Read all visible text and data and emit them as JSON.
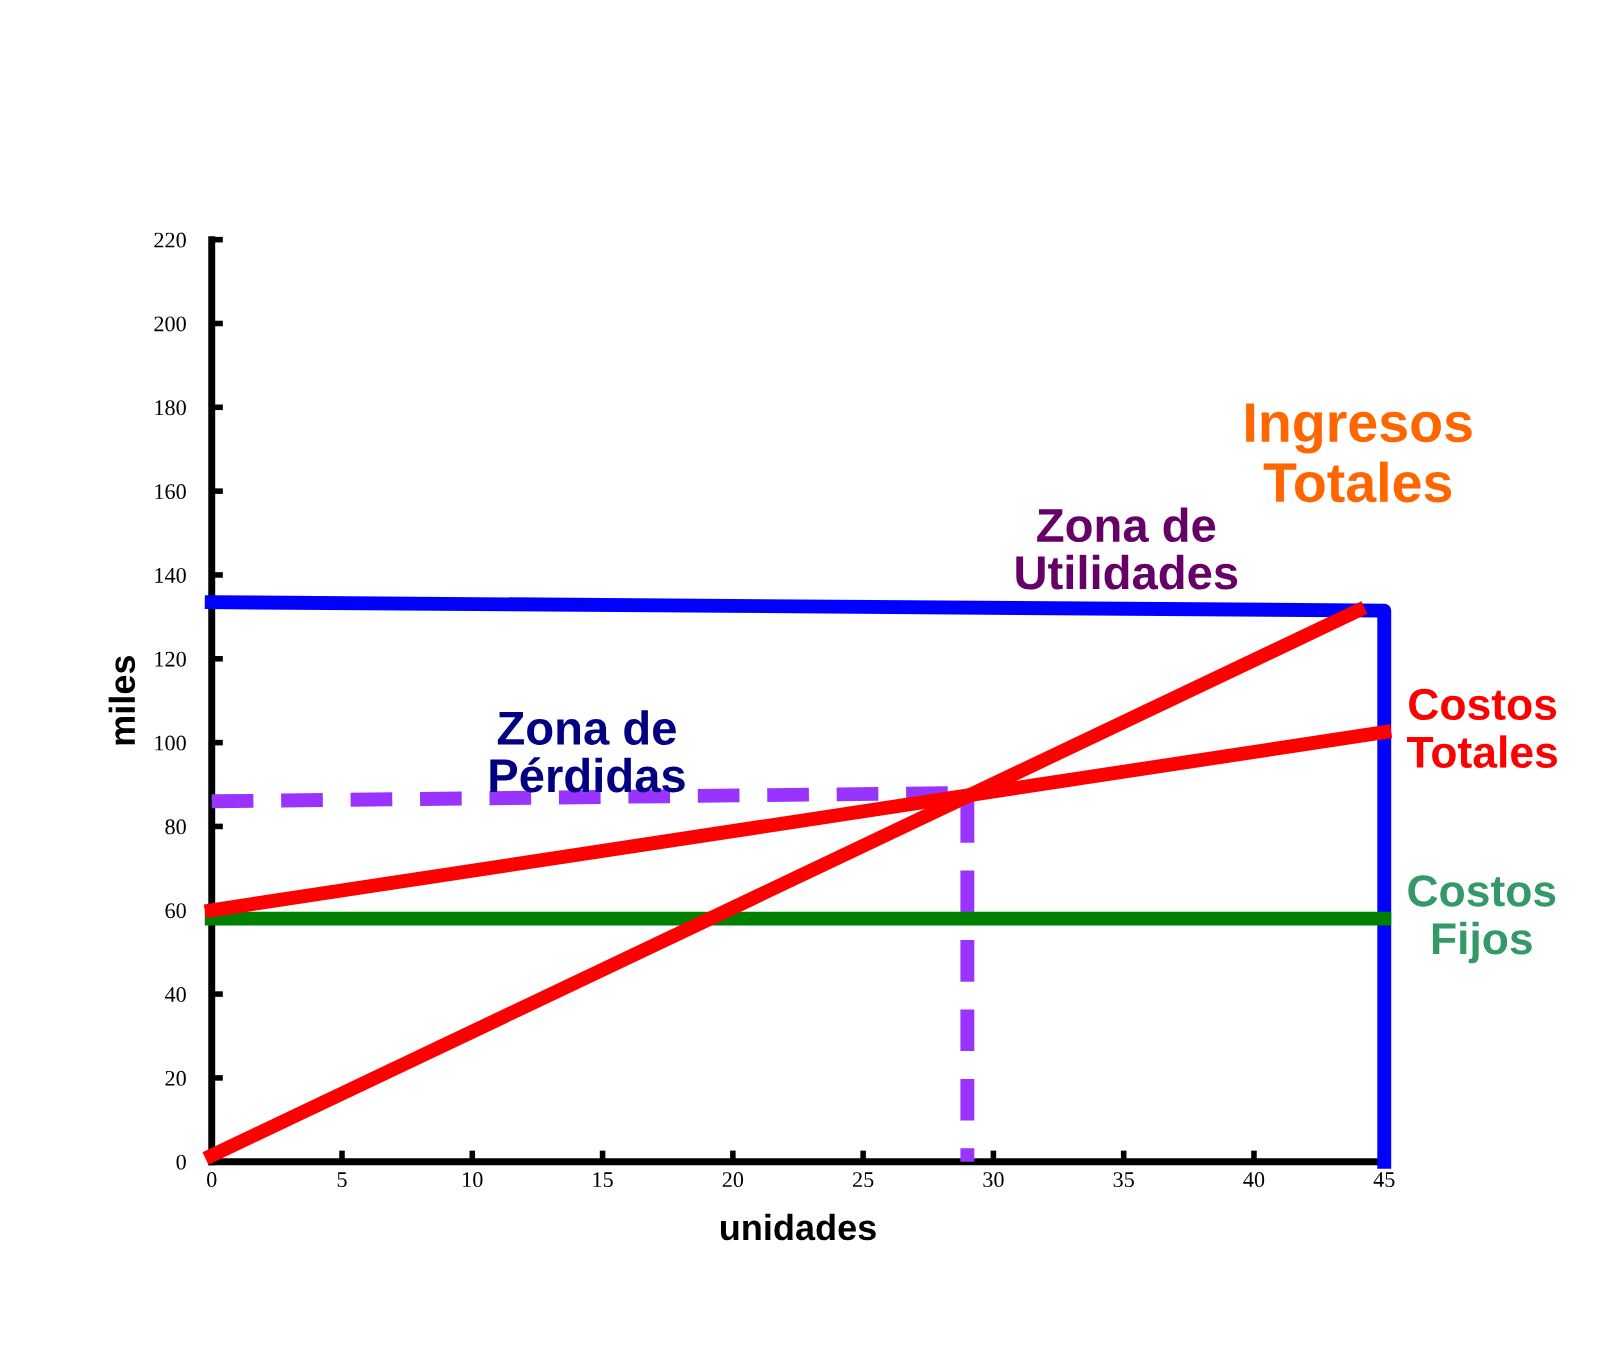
{
  "chart_data": {
    "type": "line",
    "xlabel": "unidades",
    "ylabel": "miles",
    "xlim": [
      0,
      45
    ],
    "ylim": [
      0,
      220
    ],
    "xticks": [
      0,
      5,
      10,
      15,
      20,
      25,
      30,
      35,
      40,
      45
    ],
    "yticks": [
      0,
      20,
      40,
      60,
      80,
      100,
      120,
      140,
      160,
      180,
      200,
      220
    ],
    "grid": false,
    "legend": false,
    "marker": "none",
    "series": [
      {
        "x": [
          0,
          45,
          45
        ],
        "values": [
          133.5,
          131.5,
          0
        ],
        "color": "#0000ff"
      },
      {
        "x": [
          0,
          29,
          29
        ],
        "values": [
          86,
          88,
          0
        ],
        "color": "#9933ff",
        "line_style": "dashed"
      },
      {
        "name": "Costos Fijos",
        "x": [
          0,
          45
        ],
        "values": [
          58,
          58
        ],
        "color": "#008000"
      },
      {
        "name": "Costos Totales",
        "x": [
          0,
          45
        ],
        "values": [
          60,
          102.5
        ],
        "color": "#ff0000"
      },
      {
        "name": "Ingresos Totales",
        "x": [
          0,
          44
        ],
        "values": [
          1.5,
          131.5
        ],
        "color": "#ff0000"
      }
    ],
    "annotations": [
      "Zona de\nUtilidades",
      "Zona de\nPérdidas"
    ]
  }
}
